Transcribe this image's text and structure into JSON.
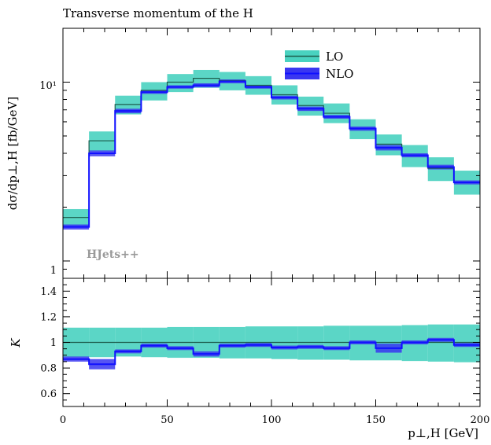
{
  "chart_data": [
    {
      "type": "step",
      "title": "Transverse momentum of the H",
      "xlabel": "",
      "ylabel": "dσ/dp⊥,H [fb/GeV]",
      "xlim": [
        0,
        200
      ],
      "ylim": [
        0.8,
        20
      ],
      "yscale": "log",
      "ytick_labels": [
        "1",
        "10¹"
      ],
      "bin_edges": [
        0,
        12.5,
        25,
        37.5,
        50,
        62.5,
        75,
        87.5,
        100,
        112.5,
        125,
        137.5,
        150,
        162.5,
        175,
        187.5,
        200
      ],
      "series": [
        {
          "name": "LO",
          "values": [
            1.75,
            4.7,
            7.5,
            9.0,
            10.0,
            10.5,
            10.2,
            9.6,
            8.5,
            7.4,
            6.7,
            5.5,
            4.5,
            3.9,
            3.3,
            2.75
          ],
          "band_low": [
            1.55,
            4.1,
            6.6,
            7.9,
            8.8,
            9.3,
            9.0,
            8.5,
            7.5,
            6.5,
            5.9,
            4.8,
            3.9,
            3.35,
            2.8,
            2.35
          ],
          "band_high": [
            1.95,
            5.3,
            8.4,
            10.0,
            11.1,
            11.7,
            11.4,
            10.8,
            9.6,
            8.3,
            7.6,
            6.2,
            5.1,
            4.45,
            3.8,
            3.2
          ],
          "color": "#49d2c0"
        },
        {
          "name": "NLO",
          "values": [
            1.55,
            4.0,
            6.9,
            8.8,
            9.4,
            9.6,
            10.1,
            9.4,
            8.2,
            7.1,
            6.4,
            5.5,
            4.3,
            3.9,
            3.35,
            2.75
          ],
          "band_low": [
            1.5,
            3.85,
            6.7,
            8.6,
            9.2,
            9.35,
            9.85,
            9.2,
            8.0,
            6.9,
            6.25,
            5.35,
            4.15,
            3.8,
            3.25,
            2.68
          ],
          "band_high": [
            1.6,
            4.15,
            7.1,
            9.0,
            9.6,
            9.85,
            10.35,
            9.6,
            8.4,
            7.3,
            6.55,
            5.65,
            4.45,
            4.0,
            3.45,
            2.82
          ],
          "color": "#3a37f0"
        }
      ],
      "legend_position": "top-right",
      "annotation": "HJets++",
      "grid": false
    },
    {
      "type": "step",
      "title": "",
      "xlabel": "p⊥,H [GeV]",
      "ylabel": "K",
      "xlim": [
        0,
        200
      ],
      "ylim": [
        0.5,
        1.5
      ],
      "xticks": [
        0,
        50,
        100,
        150,
        200
      ],
      "yticks": [
        0.6,
        0.8,
        1,
        1.2,
        1.4
      ],
      "bin_edges": [
        0,
        12.5,
        25,
        37.5,
        50,
        62.5,
        75,
        87.5,
        100,
        112.5,
        125,
        137.5,
        150,
        162.5,
        175,
        187.5,
        200
      ],
      "series": [
        {
          "name": "LO",
          "values": [
            1.0,
            1.0,
            1.0,
            1.0,
            1.0,
            1.0,
            1.0,
            1.0,
            1.0,
            1.0,
            1.0,
            1.0,
            1.0,
            1.0,
            1.0,
            1.0
          ],
          "band_low": [
            0.885,
            0.885,
            0.89,
            0.885,
            0.88,
            0.88,
            0.875,
            0.875,
            0.87,
            0.865,
            0.865,
            0.86,
            0.86,
            0.855,
            0.85,
            0.845
          ],
          "band_high": [
            1.115,
            1.115,
            1.115,
            1.115,
            1.12,
            1.12,
            1.12,
            1.125,
            1.125,
            1.125,
            1.13,
            1.13,
            1.13,
            1.135,
            1.14,
            1.14
          ],
          "color": "#49d2c0"
        },
        {
          "name": "NLO",
          "values": [
            0.87,
            0.83,
            0.93,
            0.975,
            0.955,
            0.91,
            0.975,
            0.98,
            0.96,
            0.965,
            0.955,
            1.0,
            0.955,
            1.0,
            1.02,
            0.98
          ],
          "band_low": [
            0.85,
            0.79,
            0.915,
            0.96,
            0.94,
            0.89,
            0.96,
            0.965,
            0.945,
            0.95,
            0.94,
            0.985,
            0.92,
            0.985,
            1.005,
            0.965
          ],
          "band_high": [
            0.89,
            0.87,
            0.945,
            0.99,
            0.97,
            0.93,
            0.99,
            0.995,
            0.975,
            0.98,
            0.97,
            1.015,
            0.99,
            1.015,
            1.035,
            0.995
          ],
          "color": "#3a37f0"
        }
      ],
      "grid": false
    }
  ]
}
